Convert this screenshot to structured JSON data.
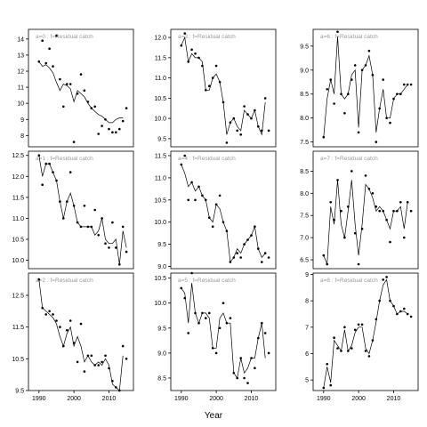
{
  "xlabel": "Year",
  "chart_data": [
    {
      "type": "scatter",
      "title": "a=0  :  f=Residual catch",
      "xlim": [
        1987,
        2017
      ],
      "ylim": [
        7.3,
        14.6
      ],
      "yticks": [
        8,
        9,
        10,
        11,
        12,
        13,
        14
      ],
      "show_x_ticks": false,
      "points": {
        "x": [
          1990,
          1991,
          1992,
          1993,
          1994,
          1995,
          1996,
          1997,
          1998,
          1999,
          2000,
          2001,
          2002,
          2003,
          2004,
          2005,
          2006,
          2007,
          2008,
          2009,
          2010,
          2011,
          2012,
          2013,
          2014,
          2015
        ],
        "y": [
          12.6,
          13.9,
          12.5,
          13.4,
          12.3,
          14.2,
          11.5,
          9.8,
          11.2,
          11.2,
          7.6,
          10.6,
          11.8,
          10.8,
          10.1,
          9.7,
          9.8,
          8.1,
          8.6,
          9.0,
          8.4,
          8.2,
          8.2,
          8.4,
          8.9,
          9.7
        ]
      },
      "fit": {
        "x": [
          1990,
          1991,
          1992,
          1993,
          1994,
          1995,
          1996,
          1997,
          1998,
          1999,
          2000,
          2001,
          2002,
          2003,
          2004,
          2005,
          2006,
          2007,
          2008,
          2009,
          2010,
          2011,
          2012,
          2013,
          2014
        ],
        "y": [
          12.6,
          12.3,
          12.4,
          12.2,
          11.9,
          11.3,
          10.8,
          11.2,
          11.1,
          10.9,
          10.1,
          10.8,
          10.6,
          10.4,
          10.0,
          9.7,
          9.5,
          9.3,
          9.2,
          9.0,
          8.8,
          8.8,
          9.0,
          9.1,
          9.1
        ]
      }
    },
    {
      "type": "scatter",
      "title": "a=1  :  f=Residual catch",
      "xlim": [
        1987,
        2017
      ],
      "ylim": [
        9.8,
        12.6
      ],
      "yticks": [
        10.0,
        10.5,
        11.0,
        11.5,
        12.0,
        12.5
      ],
      "show_x_ticks": false,
      "points": {
        "x": [
          1990,
          1991,
          1992,
          1993,
          1994,
          1995,
          1996,
          1997,
          1998,
          1999,
          2000,
          2001,
          2002,
          2003,
          2004,
          2005,
          2006,
          2007,
          2008,
          2009,
          2010,
          2011,
          2012,
          2013,
          2014,
          2015
        ],
        "y": [
          12.5,
          11.8,
          12.3,
          12.3,
          12.1,
          11.9,
          11.4,
          11.0,
          11.4,
          12.1,
          11.3,
          10.9,
          10.8,
          11.3,
          10.8,
          10.8,
          11.2,
          10.6,
          11.0,
          10.4,
          10.3,
          10.9,
          10.3,
          9.9,
          10.8,
          10.2
        ]
      },
      "fit": {
        "x": [
          1990,
          1991,
          1992,
          1993,
          1994,
          1995,
          1996,
          1997,
          1998,
          1999,
          2000,
          2001,
          2002,
          2003,
          2004,
          2005,
          2006,
          2007,
          2008,
          2009,
          2010,
          2011,
          2012,
          2013,
          2014,
          2015
        ],
        "y": [
          12.5,
          12.0,
          12.3,
          12.3,
          12.1,
          11.9,
          11.4,
          11.0,
          11.4,
          11.6,
          11.3,
          10.9,
          10.8,
          10.8,
          10.8,
          10.8,
          10.6,
          10.7,
          11.0,
          10.5,
          10.4,
          10.4,
          10.5,
          9.9,
          10.7,
          10.3
        ]
      }
    },
    {
      "type": "scatter",
      "title": "a=2  :  f=Residual catch",
      "xlim": [
        1987,
        2017
      ],
      "ylim": [
        9.5,
        13.2
      ],
      "yticks": [
        9.5,
        10.5,
        11.5,
        12.5
      ],
      "show_x_ticks": true,
      "points": {
        "x": [
          1990,
          1991,
          1992,
          1993,
          1994,
          1995,
          1996,
          1997,
          1998,
          1999,
          2000,
          2001,
          2002,
          2003,
          2004,
          2005,
          2006,
          2007,
          2008,
          2009,
          2010,
          2011,
          2012,
          2013,
          2014,
          2015
        ],
        "y": [
          13.0,
          12.1,
          11.9,
          12.0,
          11.9,
          11.7,
          11.5,
          10.9,
          11.4,
          11.7,
          11.0,
          10.4,
          11.6,
          10.1,
          10.6,
          10.6,
          10.3,
          10.3,
          10.4,
          10.6,
          10.2,
          9.8,
          9.6,
          9.5,
          10.9,
          10.5
        ]
      },
      "fit": {
        "x": [
          1990,
          1991,
          1992,
          1993,
          1994,
          1995,
          1996,
          1997,
          1998,
          1999,
          2000,
          2001,
          2002,
          2003,
          2004,
          2005,
          2006,
          2007,
          2008,
          2009,
          2010,
          2011,
          2012,
          2013,
          2014
        ],
        "y": [
          13.0,
          12.1,
          12.0,
          11.9,
          11.8,
          11.6,
          11.2,
          10.9,
          11.3,
          11.5,
          10.9,
          11.2,
          10.9,
          10.4,
          10.6,
          10.4,
          10.3,
          10.4,
          10.3,
          10.5,
          10.3,
          9.7,
          9.6,
          9.5,
          10.6
        ]
      }
    },
    {
      "type": "scatter",
      "title": "a=3  :  f=Residual catch",
      "xlim": [
        1987,
        2017
      ],
      "ylim": [
        9.3,
        12.2
      ],
      "yticks": [
        9.5,
        10.0,
        10.5,
        11.0,
        11.5,
        12.0
      ],
      "show_x_ticks": false,
      "points": {
        "x": [
          1990,
          1991,
          1992,
          1993,
          1994,
          1995,
          1996,
          1997,
          1998,
          1999,
          2000,
          2001,
          2002,
          2003,
          2004,
          2005,
          2006,
          2007,
          2008,
          2009,
          2010,
          2011,
          2012,
          2013,
          2014,
          2015
        ],
        "y": [
          11.8,
          12.1,
          11.4,
          11.7,
          11.6,
          11.5,
          11.3,
          10.7,
          10.8,
          11.0,
          11.3,
          10.9,
          10.4,
          9.4,
          9.9,
          10.0,
          9.7,
          9.6,
          10.3,
          10.1,
          10.0,
          10.2,
          9.8,
          9.7,
          10.5,
          9.7
        ]
      },
      "fit": {
        "x": [
          1990,
          1991,
          1992,
          1993,
          1994,
          1995,
          1996,
          1997,
          1998,
          1999,
          2000,
          2001,
          2002,
          2003,
          2004,
          2005,
          2006,
          2007,
          2008,
          2009,
          2010,
          2011,
          2012,
          2013,
          2014
        ],
        "y": [
          11.8,
          12.0,
          11.4,
          11.6,
          11.5,
          11.5,
          11.4,
          10.7,
          10.7,
          11.0,
          11.1,
          10.9,
          10.4,
          9.6,
          9.9,
          10.0,
          9.8,
          9.7,
          10.2,
          10.1,
          10.0,
          10.2,
          9.8,
          9.6,
          10.4
        ]
      }
    },
    {
      "type": "scatter",
      "title": "a=4  :  f=Residual catch",
      "xlim": [
        1987,
        2017
      ],
      "ylim": [
        8.95,
        11.6
      ],
      "yticks": [
        9.0,
        9.5,
        10.0,
        10.5,
        11.0,
        11.5
      ],
      "show_x_ticks": false,
      "points": {
        "x": [
          1990,
          1991,
          1992,
          1993,
          1994,
          1995,
          1996,
          1997,
          1998,
          1999,
          2000,
          2001,
          2002,
          2003,
          2004,
          2005,
          2006,
          2007,
          2008,
          2009,
          2010,
          2011,
          2012,
          2013,
          2014,
          2015
        ],
        "y": [
          11.3,
          11.5,
          10.5,
          10.9,
          10.5,
          10.8,
          10.6,
          10.5,
          10.1,
          9.9,
          10.4,
          10.6,
          10.0,
          9.8,
          9.1,
          9.2,
          9.3,
          9.2,
          9.5,
          9.6,
          9.7,
          9.9,
          9.4,
          9.1,
          9.3,
          9.2
        ]
      },
      "fit": {
        "x": [
          1990,
          1991,
          1992,
          1993,
          1994,
          1995,
          1996,
          1997,
          1998,
          1999,
          2000,
          2001,
          2002,
          2003,
          2004,
          2005,
          2006,
          2007,
          2008,
          2009,
          2010,
          2011,
          2012,
          2013,
          2014
        ],
        "y": [
          11.3,
          11.1,
          10.8,
          10.9,
          10.7,
          10.8,
          10.6,
          10.5,
          10.1,
          10.0,
          10.4,
          10.3,
          10.0,
          9.8,
          9.1,
          9.2,
          9.4,
          9.3,
          9.5,
          9.6,
          9.7,
          9.9,
          9.4,
          9.2,
          9.3
        ]
      }
    },
    {
      "type": "scatter",
      "title": "a=5  :  f=Residual catch",
      "xlim": [
        1987,
        2017
      ],
      "ylim": [
        8.25,
        10.6
      ],
      "yticks": [
        8.5,
        9.0,
        9.5,
        10.0,
        10.5
      ],
      "show_x_ticks": true,
      "points": {
        "x": [
          1990,
          1991,
          1992,
          1993,
          1994,
          1995,
          1996,
          1997,
          1998,
          1999,
          2000,
          2001,
          2002,
          2003,
          2004,
          2005,
          2006,
          2007,
          2008,
          2009,
          2010,
          2011,
          2012,
          2013,
          2014,
          2015
        ],
        "y": [
          10.3,
          10.1,
          9.4,
          10.6,
          9.8,
          9.6,
          9.8,
          9.7,
          9.8,
          9.1,
          9.0,
          9.5,
          10.0,
          9.6,
          9.7,
          8.6,
          8.5,
          8.9,
          8.5,
          8.4,
          8.9,
          8.7,
          9.3,
          9.6,
          9.4,
          9.0
        ]
      },
      "fit": {
        "x": [
          1990,
          1991,
          1992,
          1993,
          1994,
          1995,
          1996,
          1997,
          1998,
          1999,
          2000,
          2001,
          2002,
          2003,
          2004,
          2005,
          2006,
          2007,
          2008,
          2009,
          2010,
          2011,
          2012,
          2013,
          2014
        ],
        "y": [
          10.3,
          10.2,
          9.6,
          10.4,
          9.8,
          9.6,
          9.8,
          9.8,
          9.7,
          9.1,
          9.1,
          9.7,
          9.8,
          9.6,
          9.6,
          8.6,
          8.5,
          8.9,
          8.6,
          8.7,
          8.9,
          8.9,
          9.3,
          9.6,
          8.9
        ]
      }
    },
    {
      "type": "scatter",
      "title": "a=6  :  f=Residual catch",
      "xlim": [
        1987,
        2017
      ],
      "ylim": [
        7.4,
        9.85
      ],
      "yticks": [
        7.5,
        8.0,
        8.5,
        9.0,
        9.5
      ],
      "show_x_ticks": false,
      "points": {
        "x": [
          1990,
          1991,
          1992,
          1993,
          1994,
          1995,
          1996,
          1997,
          1998,
          1999,
          2000,
          2001,
          2002,
          2003,
          2004,
          2005,
          2006,
          2007,
          2008,
          2009,
          2010,
          2011,
          2012,
          2013,
          2014,
          2015
        ],
        "y": [
          7.6,
          8.6,
          8.8,
          8.3,
          9.8,
          8.5,
          8.1,
          8.5,
          8.8,
          9.1,
          7.7,
          9.0,
          9.1,
          9.4,
          8.9,
          7.5,
          8.2,
          8.8,
          8.0,
          7.9,
          8.4,
          8.5,
          8.5,
          8.7,
          8.7,
          8.7
        ]
      },
      "fit": {
        "x": [
          1990,
          1991,
          1992,
          1993,
          1994,
          1995,
          1996,
          1997,
          1998,
          1999,
          2000,
          2001,
          2002,
          2003,
          2004,
          2005,
          2006,
          2007,
          2008,
          2009,
          2010,
          2011,
          2012,
          2013,
          2014
        ],
        "y": [
          7.6,
          8.4,
          8.8,
          8.5,
          9.7,
          8.5,
          8.4,
          8.5,
          8.9,
          9.0,
          7.8,
          9.0,
          9.1,
          9.3,
          8.9,
          7.7,
          8.2,
          8.6,
          8.0,
          8.0,
          8.4,
          8.5,
          8.5,
          8.6,
          8.7
        ]
      }
    },
    {
      "type": "scatter",
      "title": "a=7  :  f=Residual catch",
      "xlim": [
        1987,
        2017
      ],
      "ylim": [
        6.3,
        8.95
      ],
      "yticks": [
        6.5,
        7.0,
        7.5,
        8.0,
        8.5
      ],
      "show_x_ticks": false,
      "points": {
        "x": [
          1990,
          1991,
          1992,
          1993,
          1994,
          1995,
          1996,
          1997,
          1998,
          1999,
          2000,
          2001,
          2002,
          2003,
          2004,
          2005,
          2006,
          2007,
          2008,
          2009,
          2010,
          2011,
          2012,
          2013,
          2014,
          2015
        ],
        "y": [
          6.6,
          6.4,
          7.8,
          7.4,
          8.3,
          7.6,
          7.0,
          7.7,
          8.5,
          7.1,
          6.4,
          7.2,
          8.4,
          8.1,
          8.0,
          7.7,
          7.6,
          7.6,
          7.4,
          6.9,
          7.6,
          7.6,
          7.8,
          7.0,
          7.8,
          7.6
        ]
      },
      "fit": {
        "x": [
          1990,
          1991,
          1992,
          1993,
          1994,
          1995,
          1996,
          1997,
          1998,
          1999,
          2000,
          2001,
          2002,
          2003,
          2004,
          2005,
          2006,
          2007,
          2008,
          2009,
          2010,
          2011,
          2012,
          2013,
          2014
        ],
        "y": [
          6.6,
          6.4,
          7.7,
          7.3,
          8.3,
          7.3,
          7.0,
          7.6,
          8.3,
          7.3,
          6.6,
          7.3,
          8.2,
          8.1,
          7.9,
          7.6,
          7.7,
          7.6,
          7.4,
          7.2,
          7.6,
          7.6,
          7.7,
          7.2,
          7.8
        ]
      }
    },
    {
      "type": "scatter",
      "title": "a=8  :  f=Residual catch",
      "xlim": [
        1987,
        2017
      ],
      "ylim": [
        4.6,
        9.05
      ],
      "yticks": [
        5,
        6,
        7,
        8,
        9
      ],
      "show_x_ticks": true,
      "points": {
        "x": [
          1990,
          1991,
          1992,
          1993,
          1994,
          1995,
          1996,
          1997,
          1998,
          1999,
          2000,
          2001,
          2002,
          2003,
          2004,
          2005,
          2006,
          2007,
          2008,
          2009,
          2010,
          2011,
          2012,
          2013,
          2014,
          2015
        ],
        "y": [
          4.7,
          5.6,
          4.8,
          6.6,
          6.2,
          6.1,
          7.0,
          6.1,
          6.2,
          6.9,
          7.1,
          7.1,
          6.1,
          5.9,
          6.5,
          7.3,
          8.0,
          8.8,
          8.9,
          8.0,
          7.8,
          7.5,
          7.6,
          7.7,
          7.5,
          7.4
        ]
      },
      "fit": {
        "x": [
          1990,
          1991,
          1992,
          1993,
          1994,
          1995,
          1996,
          1997,
          1998,
          1999,
          2000,
          2001,
          2002,
          2003,
          2004,
          2005,
          2006,
          2007,
          2008,
          2009,
          2010,
          2011,
          2012,
          2013,
          2014
        ],
        "y": [
          4.7,
          5.5,
          4.9,
          6.5,
          6.3,
          6.1,
          6.9,
          6.1,
          6.3,
          6.8,
          7.0,
          7.0,
          6.2,
          6.0,
          6.5,
          7.2,
          8.0,
          8.6,
          8.8,
          8.0,
          7.8,
          7.5,
          7.6,
          7.6,
          7.5
        ]
      }
    }
  ]
}
